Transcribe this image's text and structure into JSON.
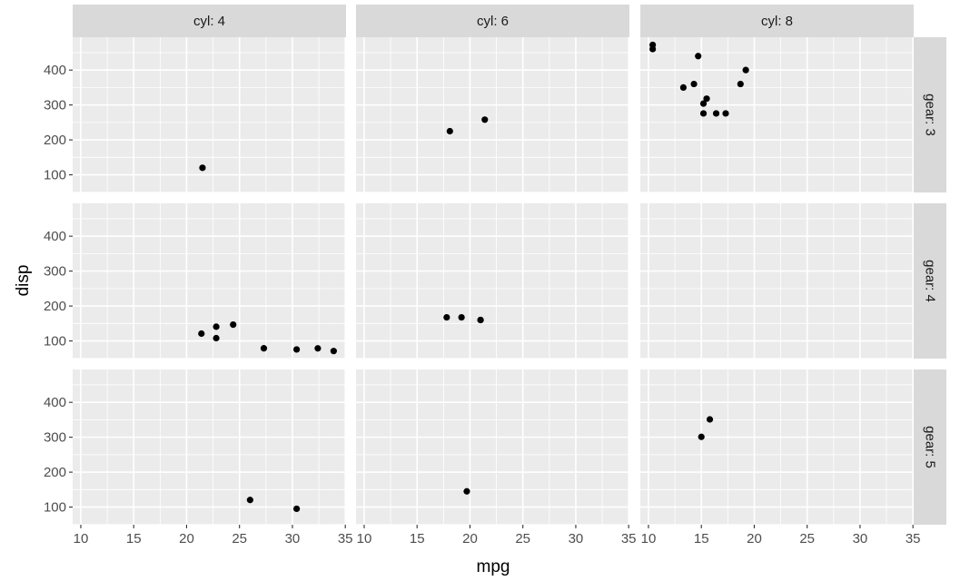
{
  "chart_data": {
    "type": "scatter",
    "xlabel": "mpg",
    "ylabel": "disp",
    "xlim": [
      9.23,
      35.07
    ],
    "ylim": [
      49.5,
      494.0
    ],
    "x_ticks": [
      10,
      15,
      20,
      25,
      30,
      35
    ],
    "y_ticks": [
      100,
      200,
      300,
      400
    ],
    "grid": true,
    "legend": "none",
    "col_strips": [
      "cyl: 4",
      "cyl: 6",
      "cyl: 8"
    ],
    "row_strips": [
      "gear: 3",
      "gear: 4",
      "gear: 5"
    ],
    "panels": [
      {
        "col": 0,
        "row": 0,
        "points": [
          [
            21.5,
            120.1
          ]
        ]
      },
      {
        "col": 1,
        "row": 0,
        "points": [
          [
            21.4,
            258.0
          ],
          [
            18.1,
            225.0
          ]
        ]
      },
      {
        "col": 2,
        "row": 0,
        "points": [
          [
            18.7,
            360.0
          ],
          [
            14.3,
            360.0
          ],
          [
            16.4,
            275.8
          ],
          [
            17.3,
            275.8
          ],
          [
            15.2,
            275.8
          ],
          [
            10.4,
            472.0
          ],
          [
            10.4,
            460.0
          ],
          [
            14.7,
            440.0
          ],
          [
            15.5,
            318.0
          ],
          [
            15.2,
            304.0
          ],
          [
            13.3,
            350.0
          ],
          [
            19.2,
            400.0
          ]
        ]
      },
      {
        "col": 0,
        "row": 1,
        "points": [
          [
            22.8,
            108.0
          ],
          [
            24.4,
            146.7
          ],
          [
            22.8,
            140.8
          ],
          [
            32.4,
            78.7
          ],
          [
            30.4,
            75.7
          ],
          [
            33.9,
            71.1
          ],
          [
            27.3,
            79.0
          ],
          [
            21.4,
            121.0
          ]
        ]
      },
      {
        "col": 1,
        "row": 1,
        "points": [
          [
            21.0,
            160.0
          ],
          [
            21.0,
            160.0
          ],
          [
            19.2,
            167.6
          ],
          [
            17.8,
            167.6
          ]
        ]
      },
      {
        "col": 2,
        "row": 1,
        "points": []
      },
      {
        "col": 0,
        "row": 2,
        "points": [
          [
            26.0,
            120.3
          ],
          [
            30.4,
            95.1
          ]
        ]
      },
      {
        "col": 1,
        "row": 2,
        "points": [
          [
            19.7,
            145.0
          ]
        ]
      },
      {
        "col": 2,
        "row": 2,
        "points": [
          [
            15.8,
            351.0
          ],
          [
            15.0,
            301.0
          ]
        ]
      }
    ]
  }
}
